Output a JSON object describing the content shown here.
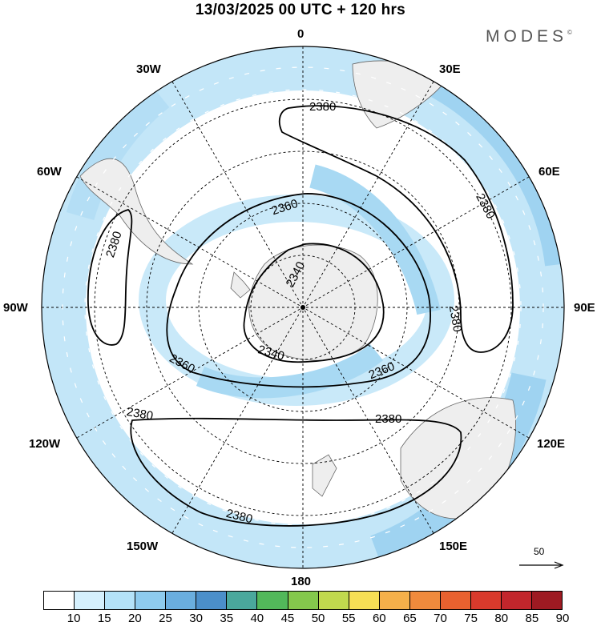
{
  "title": "13/03/2025  00 UTC  + 120 hrs",
  "brand": {
    "name": "MODES",
    "mark": "©"
  },
  "longitude_labels": {
    "top": "0",
    "bottom": "180",
    "lon_30w": "30W",
    "lon_30e": "30E",
    "lon_60w": "60W",
    "lon_60e": "60E",
    "lon_90w": "90W",
    "lon_90e": "90E",
    "lon_120w": "120W",
    "lon_120e": "120E",
    "lon_150w": "150W",
    "lon_150e": "150E"
  },
  "contour_labels": {
    "c2380_top": "2380",
    "c2380_left": "2380",
    "c2380_right": "2380",
    "c2380_east": "2380",
    "c2360_top": "2360",
    "c2360_left": "2360",
    "c2360_right": "2360",
    "c2340_top": "2340",
    "c2340_bottom": "2340",
    "c2380_lower_left": "2380",
    "c2380_lower_right": "2380",
    "c2380_bottom": "2380"
  },
  "reference_vector": {
    "label": "50"
  },
  "colorbar": {
    "ticks": [
      "10",
      "15",
      "20",
      "25",
      "30",
      "35",
      "40",
      "45",
      "50",
      "55",
      "60",
      "65",
      "70",
      "75",
      "80",
      "85",
      "90"
    ],
    "colors": [
      "#ffffff",
      "#d5f0fd",
      "#b4e2f8",
      "#8ecbee",
      "#6aaedf",
      "#4b8fca",
      "#4aa89c",
      "#52b85a",
      "#84c84c",
      "#c1d94e",
      "#f6df55",
      "#f5b04a",
      "#f08a3c",
      "#e8612f",
      "#d93a2c",
      "#c2262c",
      "#9e1a22"
    ]
  }
}
